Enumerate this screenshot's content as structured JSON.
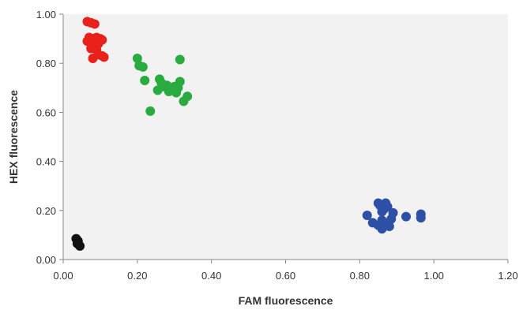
{
  "chart_data": {
    "type": "scatter",
    "title": "",
    "xlabel": "FAM fluorescence",
    "ylabel": "HEX fluorescence",
    "xlim": [
      0.0,
      1.2
    ],
    "ylim": [
      0.0,
      1.0
    ],
    "x_ticks": [
      "0.00",
      "0.20",
      "0.40",
      "0.60",
      "0.80",
      "1.00",
      "1.20"
    ],
    "y_ticks": [
      "0.00",
      "0.20",
      "0.40",
      "0.60",
      "0.80",
      "1.00"
    ],
    "grid": false,
    "legend": "none",
    "plot_background": "#f2f2f2",
    "series": [
      {
        "color": "#e8221b",
        "points": [
          [
            0.065,
            0.97
          ],
          [
            0.075,
            0.965
          ],
          [
            0.085,
            0.96
          ],
          [
            0.07,
            0.905
          ],
          [
            0.08,
            0.9
          ],
          [
            0.09,
            0.905
          ],
          [
            0.1,
            0.9
          ],
          [
            0.105,
            0.895
          ],
          [
            0.065,
            0.89
          ],
          [
            0.075,
            0.885
          ],
          [
            0.095,
            0.88
          ],
          [
            0.085,
            0.87
          ],
          [
            0.075,
            0.86
          ],
          [
            0.09,
            0.855
          ],
          [
            0.095,
            0.835
          ],
          [
            0.105,
            0.83
          ],
          [
            0.08,
            0.82
          ],
          [
            0.11,
            0.825
          ]
        ]
      },
      {
        "color": "#2aab3f",
        "points": [
          [
            0.2,
            0.82
          ],
          [
            0.315,
            0.815
          ],
          [
            0.205,
            0.79
          ],
          [
            0.215,
            0.785
          ],
          [
            0.22,
            0.73
          ],
          [
            0.26,
            0.735
          ],
          [
            0.265,
            0.72
          ],
          [
            0.315,
            0.725
          ],
          [
            0.27,
            0.705
          ],
          [
            0.28,
            0.71
          ],
          [
            0.3,
            0.705
          ],
          [
            0.31,
            0.7
          ],
          [
            0.255,
            0.69
          ],
          [
            0.285,
            0.685
          ],
          [
            0.305,
            0.68
          ],
          [
            0.335,
            0.665
          ],
          [
            0.325,
            0.645
          ],
          [
            0.235,
            0.605
          ]
        ]
      },
      {
        "color": "#2e4fa6",
        "points": [
          [
            0.85,
            0.23
          ],
          [
            0.87,
            0.23
          ],
          [
            0.855,
            0.22
          ],
          [
            0.875,
            0.215
          ],
          [
            0.865,
            0.205
          ],
          [
            0.86,
            0.195
          ],
          [
            0.89,
            0.19
          ],
          [
            0.965,
            0.185
          ],
          [
            0.82,
            0.18
          ],
          [
            0.925,
            0.175
          ],
          [
            0.965,
            0.17
          ],
          [
            0.885,
            0.165
          ],
          [
            0.86,
            0.16
          ],
          [
            0.835,
            0.15
          ],
          [
            0.87,
            0.145
          ],
          [
            0.85,
            0.14
          ],
          [
            0.88,
            0.135
          ],
          [
            0.86,
            0.125
          ]
        ]
      },
      {
        "color": "#111111",
        "points": [
          [
            0.035,
            0.085
          ],
          [
            0.04,
            0.075
          ],
          [
            0.038,
            0.065
          ],
          [
            0.045,
            0.055
          ]
        ]
      }
    ]
  }
}
